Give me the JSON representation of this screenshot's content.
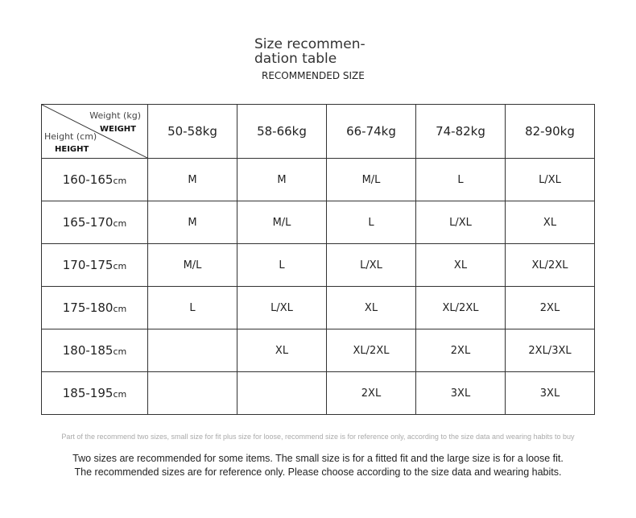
{
  "header": {
    "title_lines": [
      "Size recommen-",
      "dation table"
    ],
    "subtitle": "RECOMMENDED SIZE"
  },
  "table": {
    "corner": {
      "weight": "Weight (kg)",
      "weight_caps": "WEIGHT",
      "height": "Height (cm)",
      "height_caps": "HEIGHT"
    },
    "columns": [
      "50-58kg",
      "58-66kg",
      "66-74kg",
      "74-82kg",
      "82-90kg"
    ],
    "unit": "cm",
    "rows": [
      {
        "height": "160-165",
        "sizes": [
          "M",
          "M",
          "M/L",
          "L",
          "L/XL"
        ]
      },
      {
        "height": "165-170",
        "sizes": [
          "M",
          "M/L",
          "L",
          "L/XL",
          "XL"
        ]
      },
      {
        "height": "170-175",
        "sizes": [
          "M/L",
          "L",
          "L/XL",
          "XL",
          "XL/2XL"
        ]
      },
      {
        "height": "175-180",
        "sizes": [
          "L",
          "L/XL",
          "XL",
          "XL/2XL",
          "2XL"
        ]
      },
      {
        "height": "180-185",
        "sizes": [
          null,
          "XL",
          "XL/2XL",
          "2XL",
          "2XL/3XL"
        ]
      },
      {
        "height": "185-195",
        "sizes": [
          null,
          null,
          "2XL",
          "3XL",
          "3XL"
        ]
      }
    ]
  },
  "footer": {
    "fine_print": "Part of the recommend two sizes, small size for fit plus size for loose, recommend size is for reference only, according to the size data and wearing habits to buy",
    "notes": [
      "Two sizes are recommended for some items. The small size is for a fitted fit and the large size is for a loose fit.",
      "The recommended sizes are for reference only. Please choose according to the size data and wearing habits."
    ]
  }
}
